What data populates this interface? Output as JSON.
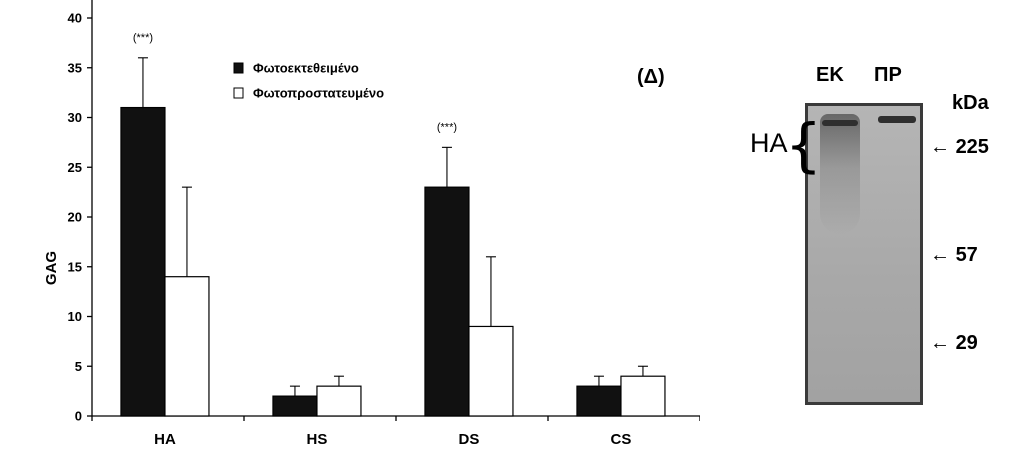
{
  "chart_data": {
    "type": "bar",
    "ylabel": "GAG",
    "ylim": [
      0,
      40
    ],
    "yticks": [
      0,
      5,
      10,
      15,
      20,
      25,
      30,
      35,
      40
    ],
    "categories": [
      "HA",
      "HS",
      "DS",
      "CS"
    ],
    "series": [
      {
        "name": "Φωτοεκτεθειμένο",
        "color": "#111111",
        "values": [
          31,
          2,
          23,
          3
        ],
        "errors": [
          5,
          1,
          4,
          1
        ]
      },
      {
        "name": "Φωτοπροστατευμένο",
        "color": "#ffffff",
        "values": [
          14,
          3,
          9,
          4
        ],
        "errors": [
          9,
          1,
          7,
          1
        ]
      }
    ],
    "annotations": [
      {
        "category": "HA",
        "text": "(***)"
      },
      {
        "category": "DS",
        "text": "(***)"
      }
    ],
    "legend_position": "top-center"
  },
  "panel_label": "(Δ)",
  "blot": {
    "lanes": [
      "ΕΚ",
      "ΠΡ"
    ],
    "unit": "kDa",
    "markers": [
      "225",
      "57",
      "29"
    ],
    "band_label": "HA"
  }
}
